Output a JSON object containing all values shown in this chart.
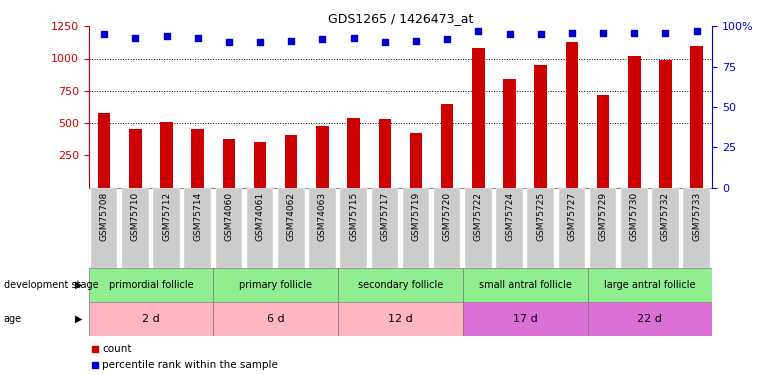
{
  "title": "GDS1265 / 1426473_at",
  "samples": [
    "GSM75708",
    "GSM75710",
    "GSM75712",
    "GSM75714",
    "GSM74060",
    "GSM74061",
    "GSM74062",
    "GSM74063",
    "GSM75715",
    "GSM75717",
    "GSM75719",
    "GSM75720",
    "GSM75722",
    "GSM75724",
    "GSM75725",
    "GSM75727",
    "GSM75729",
    "GSM75730",
    "GSM75732",
    "GSM75733"
  ],
  "counts": [
    580,
    450,
    510,
    450,
    375,
    355,
    405,
    480,
    540,
    530,
    420,
    645,
    1085,
    840,
    950,
    1130,
    720,
    1020,
    990,
    1100
  ],
  "percentile_ranks": [
    95,
    93,
    94,
    93,
    90,
    90,
    91,
    92,
    93,
    90,
    91,
    92,
    97,
    95,
    95,
    96,
    96,
    96,
    96,
    97
  ],
  "ylim_left": [
    0,
    1250
  ],
  "ylim_right": [
    0,
    100
  ],
  "yticks_left": [
    250,
    500,
    750,
    1000,
    1250
  ],
  "yticks_right": [
    0,
    25,
    50,
    75,
    100
  ],
  "groups": [
    {
      "label": "primordial follicle",
      "age": "2 d",
      "start": 0,
      "end": 4,
      "color": "#90ee90"
    },
    {
      "label": "primary follicle",
      "age": "6 d",
      "start": 4,
      "end": 8,
      "color": "#90ee90"
    },
    {
      "label": "secondary follicle",
      "age": "12 d",
      "start": 8,
      "end": 12,
      "color": "#90ee90"
    },
    {
      "label": "small antral follicle",
      "age": "17 d",
      "start": 12,
      "end": 16,
      "color": "#90ee90"
    },
    {
      "label": "large antral follicle",
      "age": "22 d",
      "start": 16,
      "end": 20,
      "color": "#90ee90"
    }
  ],
  "age_colors": [
    "#ffb6c1",
    "#ffb6c1",
    "#ffb6c1",
    "#da70d6",
    "#da70d6"
  ],
  "bar_color": "#cc0000",
  "dot_color": "#0000cc",
  "left_axis_color": "#cc0000",
  "right_axis_color": "#0000cc",
  "tick_bg_color": "#cccccc",
  "figure_width": 7.7,
  "figure_height": 3.75,
  "dpi": 100
}
